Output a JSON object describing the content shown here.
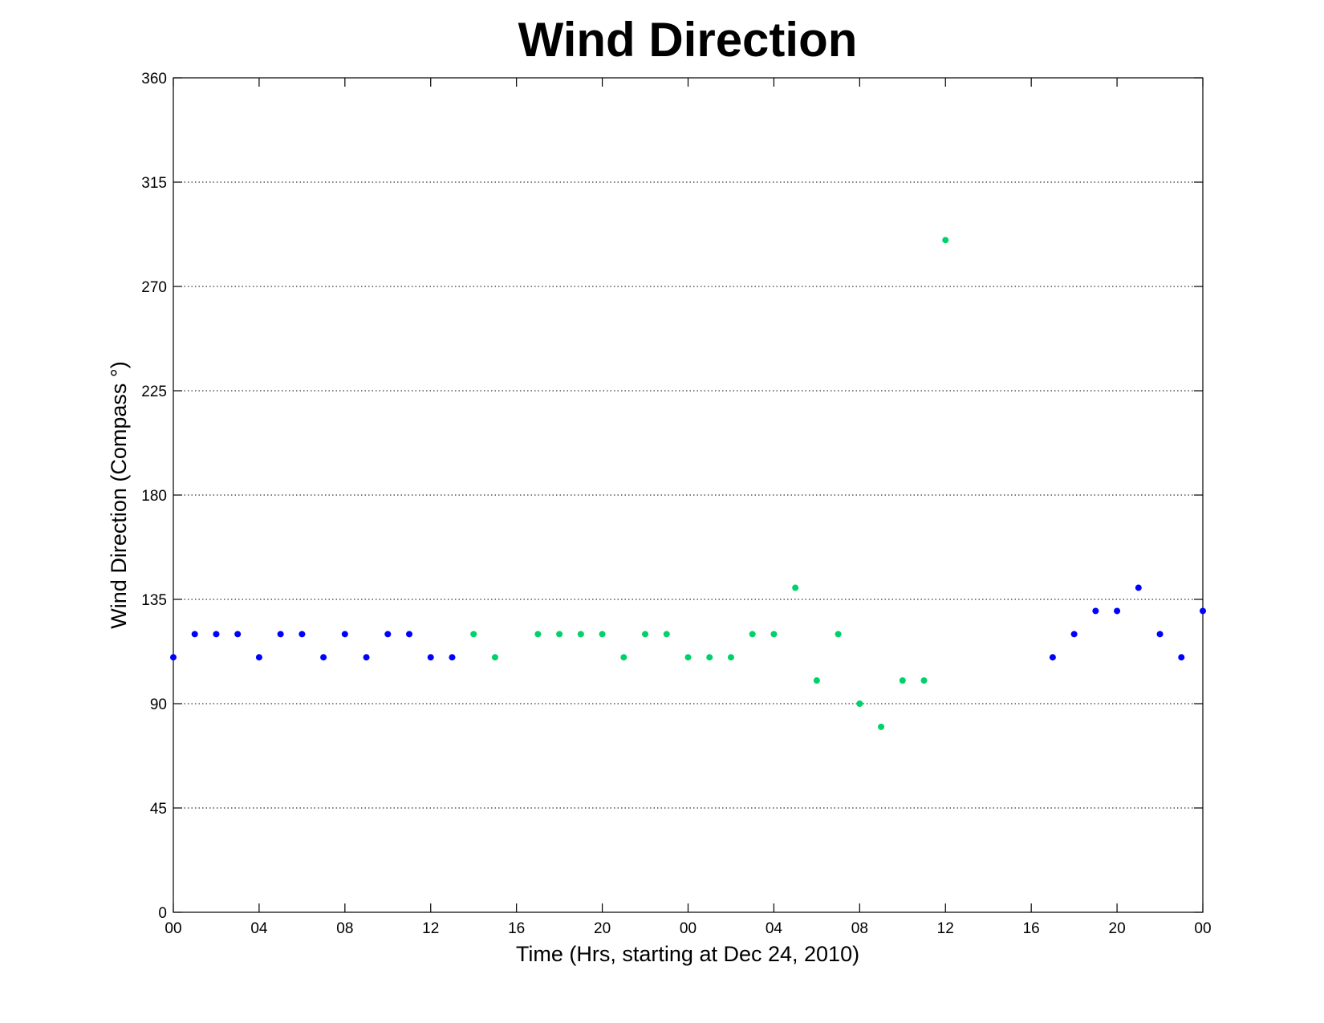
{
  "chart_data": {
    "type": "scatter",
    "title": "Wind Direction",
    "xlabel": "Time (Hrs, starting at Dec 24, 2010)",
    "ylabel": "Wind Direction (Compass °)",
    "x_unit": "hours",
    "xlim": [
      0,
      48
    ],
    "ylim": [
      0,
      360
    ],
    "yticks": [
      0,
      45,
      90,
      135,
      180,
      225,
      270,
      315,
      360
    ],
    "xticks": [
      0,
      4,
      8,
      12,
      16,
      20,
      24,
      28,
      32,
      36,
      40,
      44,
      48
    ],
    "xtick_labels": [
      "00",
      "04",
      "08",
      "12",
      "16",
      "20",
      "00",
      "04",
      "08",
      "12",
      "16",
      "20",
      "00"
    ],
    "grid": "y-dotted",
    "series": [
      {
        "color": "#0000ff",
        "points": [
          [
            0,
            110
          ],
          [
            1,
            120
          ],
          [
            2,
            120
          ],
          [
            3,
            120
          ],
          [
            4,
            110
          ],
          [
            5,
            120
          ],
          [
            6,
            120
          ],
          [
            7,
            110
          ],
          [
            8,
            120
          ],
          [
            9,
            110
          ],
          [
            10,
            120
          ],
          [
            11,
            120
          ],
          [
            12,
            110
          ],
          [
            13,
            110
          ],
          [
            41,
            110
          ],
          [
            42,
            120
          ],
          [
            43,
            130
          ],
          [
            44,
            130
          ],
          [
            45,
            140
          ],
          [
            46,
            120
          ],
          [
            47,
            110
          ],
          [
            48,
            130
          ]
        ]
      },
      {
        "color": "#00d26a",
        "points": [
          [
            14,
            120
          ],
          [
            15,
            110
          ],
          [
            17,
            120
          ],
          [
            18,
            120
          ],
          [
            19,
            120
          ],
          [
            20,
            120
          ],
          [
            21,
            110
          ],
          [
            22,
            120
          ],
          [
            23,
            120
          ],
          [
            24,
            110
          ],
          [
            25,
            110
          ],
          [
            26,
            110
          ],
          [
            27,
            120
          ],
          [
            28,
            120
          ],
          [
            29,
            140
          ],
          [
            30,
            100
          ],
          [
            31,
            120
          ],
          [
            32,
            90
          ],
          [
            33,
            80
          ],
          [
            34,
            100
          ],
          [
            35,
            100
          ],
          [
            36,
            290
          ]
        ]
      }
    ]
  }
}
